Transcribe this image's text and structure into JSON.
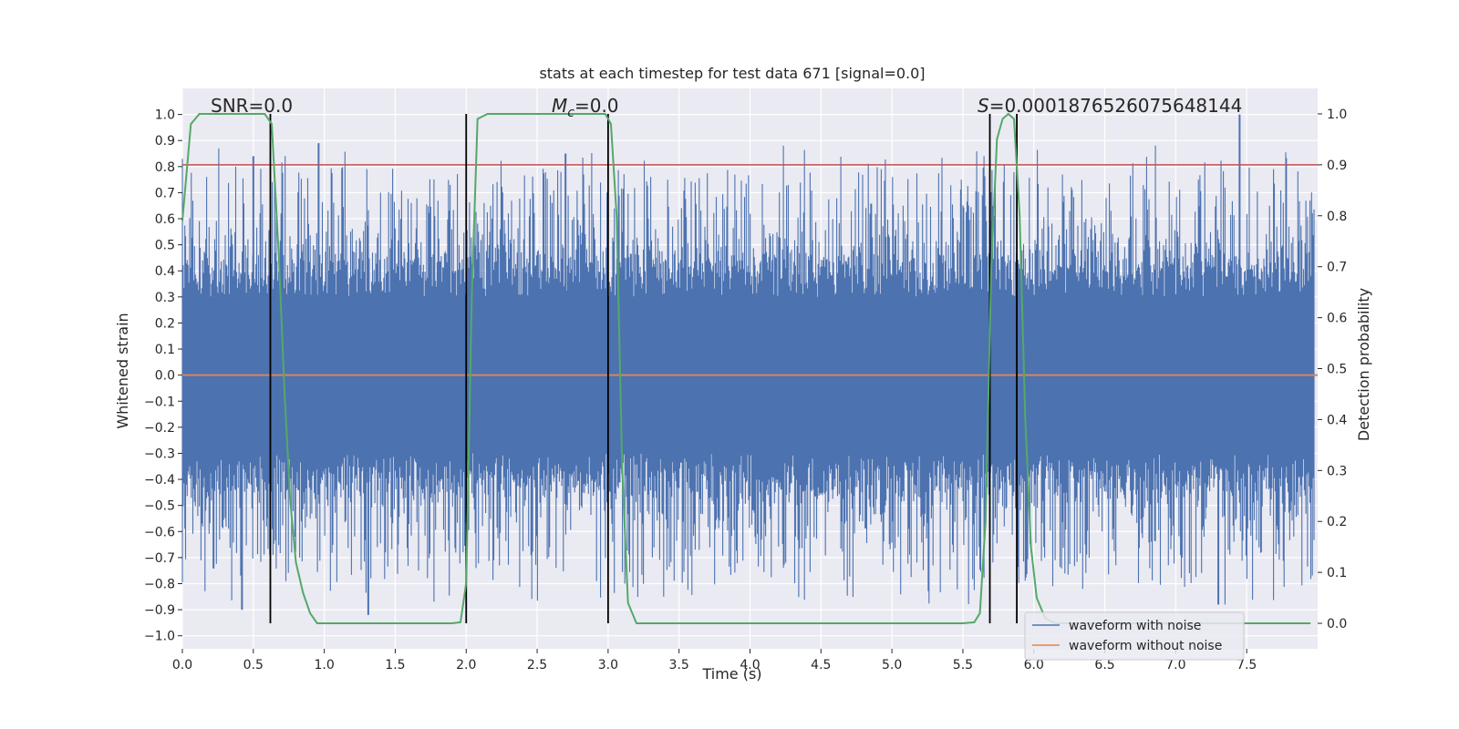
{
  "chart_data": {
    "type": "line",
    "title": "stats at each timestep for test data 671 [signal=0.0]",
    "xlabel": "Time (s)",
    "ylabel_left": "Whitened strain",
    "ylabel_right": "Detection probability",
    "xlim": [
      0.0,
      8.0
    ],
    "ylim_left": [
      -1.05,
      1.1
    ],
    "ylim_right": [
      -0.05,
      1.05
    ],
    "x_ticks": [
      "0.0",
      "0.5",
      "1.0",
      "1.5",
      "2.0",
      "2.5",
      "3.0",
      "3.5",
      "4.0",
      "4.5",
      "5.0",
      "5.5",
      "6.0",
      "6.5",
      "7.0",
      "7.5"
    ],
    "x_tick_values": [
      0.0,
      0.5,
      1.0,
      1.5,
      2.0,
      2.5,
      3.0,
      3.5,
      4.0,
      4.5,
      5.0,
      5.5,
      6.0,
      6.5,
      7.0,
      7.5
    ],
    "y_left_ticks": [
      "1.0",
      "0.9",
      "0.8",
      "0.7",
      "0.6",
      "0.5",
      "0.4",
      "0.3",
      "0.2",
      "0.1",
      "0.0",
      "−0.1",
      "−0.2",
      "−0.3",
      "−0.4",
      "−0.5",
      "−0.6",
      "−0.7",
      "−0.8",
      "−0.9",
      "−1.0"
    ],
    "y_left_tick_values": [
      1.0,
      0.9,
      0.8,
      0.7,
      0.6,
      0.5,
      0.4,
      0.3,
      0.2,
      0.1,
      0.0,
      -0.1,
      -0.2,
      -0.3,
      -0.4,
      -0.5,
      -0.6,
      -0.7,
      -0.8,
      -0.9,
      -1.0
    ],
    "y_right_ticks": [
      "1.0",
      "0.9",
      "0.8",
      "0.7",
      "0.6",
      "0.5",
      "0.4",
      "0.3",
      "0.2",
      "0.1",
      "0.0"
    ],
    "y_right_tick_values": [
      1.0,
      0.9,
      0.8,
      0.7,
      0.6,
      0.5,
      0.4,
      0.3,
      0.2,
      0.1,
      0.0
    ],
    "annotations": {
      "snr": "SNR=0.0",
      "mc_symbol": "M",
      "mc_sub": "c",
      "mc_value": "=0.0",
      "s_symbol": "S",
      "s_value": "=0.0001876526075648144"
    },
    "threshold_right": 0.9,
    "vertical_lines_x": [
      0.62,
      2.0,
      3.0,
      5.69,
      5.88
    ],
    "series": [
      {
        "name": "waveform with noise",
        "color": "#4c72b0",
        "kind": "noise",
        "approx_range": [
          -0.92,
          1.0
        ],
        "peak_points": [
          [
            0.42,
            -0.9
          ],
          [
            0.5,
            0.84
          ],
          [
            0.96,
            0.89
          ],
          [
            1.31,
            -0.92
          ],
          [
            2.7,
            0.85
          ],
          [
            7.45,
            1.0
          ],
          [
            7.3,
            -0.88
          ]
        ]
      },
      {
        "name": "waveform without noise",
        "color": "#dd8452",
        "kind": "constant",
        "value": 0.0
      },
      {
        "name": "Detection probability",
        "color": "#55a868",
        "axis": "right",
        "x": [
          0.0,
          0.06,
          0.12,
          0.2,
          0.3,
          0.4,
          0.5,
          0.58,
          0.63,
          0.68,
          0.72,
          0.76,
          0.8,
          0.85,
          0.9,
          0.95,
          1.0,
          1.5,
          1.9,
          1.96,
          2.0,
          2.04,
          2.08,
          2.15,
          2.5,
          2.98,
          3.02,
          3.06,
          3.1,
          3.14,
          3.2,
          3.5,
          4.0,
          4.5,
          5.0,
          5.5,
          5.58,
          5.62,
          5.66,
          5.7,
          5.74,
          5.78,
          5.82,
          5.86,
          5.9,
          5.94,
          5.98,
          6.02,
          6.08,
          6.15,
          6.3,
          7.0,
          7.5,
          7.95
        ],
        "y": [
          0.79,
          0.98,
          1.0,
          1.0,
          1.0,
          1.0,
          1.0,
          1.0,
          0.98,
          0.72,
          0.45,
          0.24,
          0.12,
          0.06,
          0.02,
          0.0,
          0.0,
          0.0,
          0.0,
          0.002,
          0.08,
          0.65,
          0.99,
          1.0,
          1.0,
          1.0,
          0.98,
          0.8,
          0.3,
          0.04,
          0.0,
          0.0,
          0.0,
          0.0,
          0.0,
          0.0,
          0.002,
          0.02,
          0.2,
          0.7,
          0.95,
          0.99,
          1.0,
          0.99,
          0.8,
          0.4,
          0.15,
          0.05,
          0.01,
          0.0,
          0.0,
          0.0,
          0.0,
          0.0
        ]
      }
    ],
    "legend": {
      "placement": "lower-right",
      "entries": [
        {
          "label": "waveform with noise",
          "color": "#4c72b0"
        },
        {
          "label": "waveform without noise",
          "color": "#dd8452"
        }
      ]
    },
    "colors": {
      "plot_bg": "#eaeaf2",
      "grid": "#ffffff",
      "threshold": "#c44e52",
      "vline": "#000000",
      "text": "#262626"
    }
  }
}
